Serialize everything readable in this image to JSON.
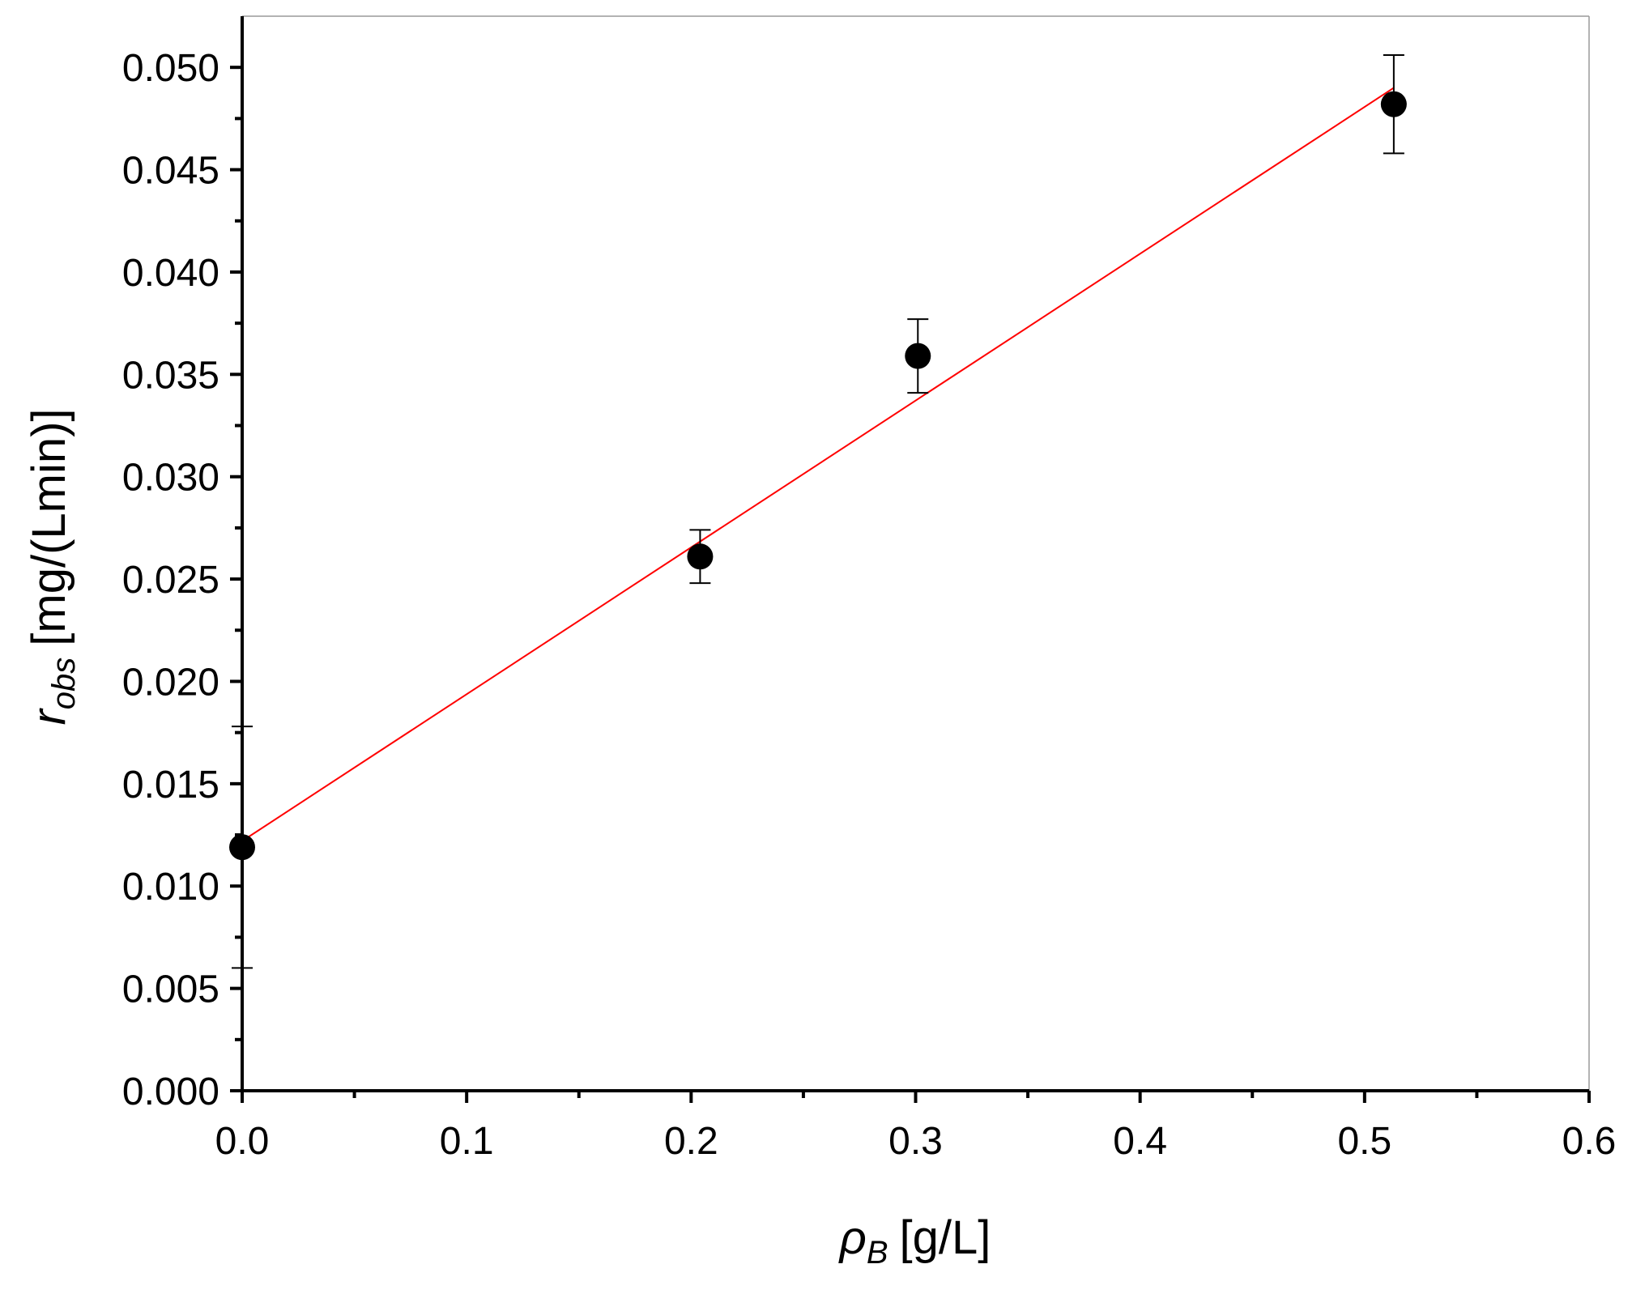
{
  "chart_data": {
    "type": "scatter",
    "title": "",
    "xlabel": {
      "symbol": "ρ",
      "subscript": "B",
      "unit": "[g/L]"
    },
    "ylabel": {
      "symbol": "r",
      "subscript": "obs",
      "unit": "[mg/(Lmin)]"
    },
    "xlim": [
      0,
      0.6
    ],
    "ylim": [
      0,
      0.0525
    ],
    "x_ticks": [
      "0.0",
      "0.1",
      "0.2",
      "0.3",
      "0.4",
      "0.5",
      "0.6"
    ],
    "y_ticks": [
      "0.000",
      "0.005",
      "0.010",
      "0.015",
      "0.020",
      "0.025",
      "0.030",
      "0.035",
      "0.040",
      "0.045",
      "0.050"
    ],
    "grid": false,
    "legend": "none",
    "series": [
      {
        "points": [
          {
            "x": 0.0,
            "y": 0.0119,
            "err": 0.0059
          },
          {
            "x": 0.204,
            "y": 0.0261,
            "err": 0.0013
          },
          {
            "x": 0.301,
            "y": 0.0359,
            "err": 0.0018
          },
          {
            "x": 0.513,
            "y": 0.0482,
            "err": 0.0024
          }
        ],
        "marker_color": "#000000"
      }
    ],
    "fit_line": {
      "x": [
        0.0,
        0.513
      ],
      "y": [
        0.0122,
        0.049
      ],
      "color": "#ff0000"
    }
  }
}
